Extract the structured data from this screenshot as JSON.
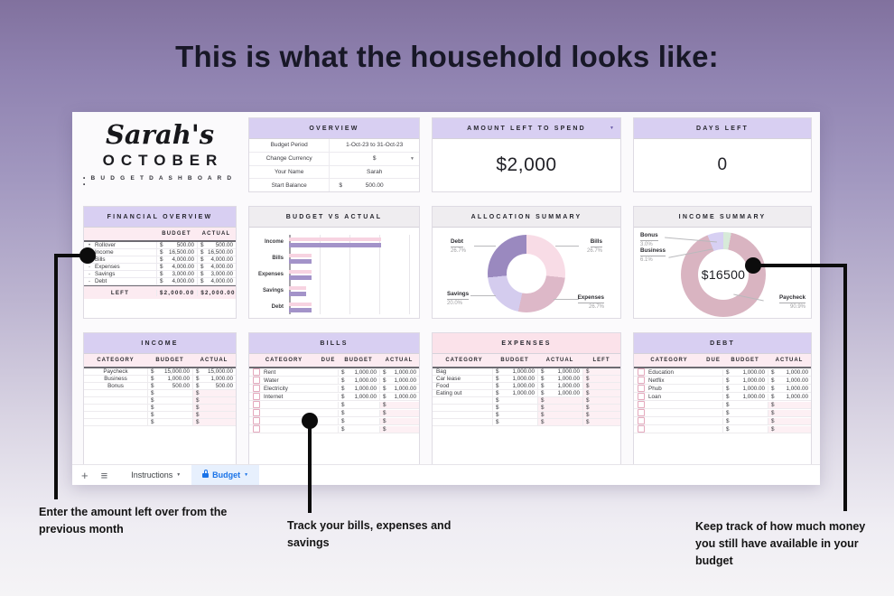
{
  "page": {
    "title": "This is what the household looks like:"
  },
  "logo": {
    "name": "Sarah's",
    "month": "OCTOBER",
    "subtitle": "• B U D G E T  D A S H B O A R D •"
  },
  "overview": {
    "title": "OVERVIEW",
    "rows": [
      {
        "label": "Budget Period",
        "cur": "",
        "value": "1-Oct-23   to   31-Oct-23",
        "arrow": ""
      },
      {
        "label": "Change Currency",
        "cur": "",
        "value": "$",
        "arrow": "▼"
      },
      {
        "label": "Your Name",
        "cur": "",
        "value": "Sarah",
        "arrow": ""
      },
      {
        "label": "Start Balance",
        "cur": "$",
        "value": "500.00",
        "arrow": ""
      }
    ]
  },
  "amount_left": {
    "title": "AMOUNT LEFT TO SPEND",
    "arrow": "▼",
    "value": "$2,000"
  },
  "days_left": {
    "title": "DAYS LEFT",
    "value": "0"
  },
  "financial_overview": {
    "title": "FINANCIAL OVERVIEW",
    "currency": "$",
    "columns": [
      "BUDGET",
      "ACTUAL"
    ],
    "rows": [
      {
        "bullet": "•",
        "label": "Rollover",
        "budget": "500.00",
        "actual": "500.00"
      },
      {
        "bullet": "",
        "label": "Income",
        "budget": "16,500.00",
        "actual": "16,500.00"
      },
      {
        "bullet": "-",
        "label": "Bills",
        "budget": "4,000.00",
        "actual": "4,000.00"
      },
      {
        "bullet": "-",
        "label": "Expenses",
        "budget": "4,000.00",
        "actual": "4,000.00"
      },
      {
        "bullet": "-",
        "label": "Savings",
        "budget": "3,000.00",
        "actual": "3,000.00"
      },
      {
        "bullet": "-",
        "label": "Debt",
        "budget": "4,000.00",
        "actual": "4,000.00"
      }
    ],
    "footer": {
      "label": "LEFT",
      "budget": "2,000.00",
      "actual": "2,000.00"
    }
  },
  "chart_data": [
    {
      "id": "budget_vs_actual",
      "type": "bar",
      "orientation": "horizontal",
      "title": "BUDGET VS ACTUAL",
      "categories": [
        "Income",
        "Bills",
        "Expenses",
        "Savings",
        "Debt"
      ],
      "series": [
        {
          "name": "Budget",
          "color": "#f7d3e1",
          "values": [
            16500,
            4000,
            4000,
            3000,
            4000
          ]
        },
        {
          "name": "Actual",
          "color": "#a393c9",
          "values": [
            16500,
            4000,
            4000,
            3000,
            4000
          ]
        }
      ],
      "xlim": [
        0,
        20000
      ],
      "gridline_interval": 5000,
      "legend": false
    },
    {
      "id": "allocation_summary",
      "type": "pie",
      "subtype": "donut",
      "title": "ALLOCATION SUMMARY",
      "slices": [
        {
          "label": "Bills",
          "pct": 26.7,
          "pct_label": "26.7%",
          "color": "#f8dce6"
        },
        {
          "label": "Expenses",
          "pct": 26.7,
          "pct_label": "26.7%",
          "color": "#ddb8c8"
        },
        {
          "label": "Savings",
          "pct": 20.0,
          "pct_label": "20.0%",
          "color": "#d4ccee"
        },
        {
          "label": "Debt",
          "pct": 26.7,
          "pct_label": "26.7%",
          "color": "#9a89bf"
        }
      ]
    },
    {
      "id": "income_summary",
      "type": "pie",
      "subtype": "donut",
      "title": "INCOME SUMMARY",
      "center_label": "$16500",
      "slices": [
        {
          "label": "Bonus",
          "pct": 3.0,
          "pct_label": "3.0%",
          "color": "#d7ead9"
        },
        {
          "label": "Paycheck",
          "pct": 90.9,
          "pct_label": "90.9%",
          "color": "#d9b4c1"
        },
        {
          "label": "Business",
          "pct": 6.1,
          "pct_label": "6.1%",
          "color": "#d7d0f3"
        }
      ]
    }
  ],
  "income": {
    "title": "INCOME",
    "currency": "$",
    "columns": [
      "CATEGORY",
      "BUDGET",
      "ACTUAL"
    ],
    "rows": [
      {
        "category": "Paycheck",
        "budget": "15,000.00",
        "actual": "15,000.00"
      },
      {
        "category": "Business",
        "budget": "1,000.00",
        "actual": "1,000.00"
      },
      {
        "category": "Bonus",
        "budget": "500.00",
        "actual": "500.00"
      },
      {
        "category": "",
        "budget": "",
        "actual": ""
      },
      {
        "category": "",
        "budget": "",
        "actual": ""
      },
      {
        "category": "",
        "budget": "",
        "actual": ""
      },
      {
        "category": "",
        "budget": "",
        "actual": ""
      },
      {
        "category": "",
        "budget": "",
        "actual": ""
      }
    ]
  },
  "bills": {
    "title": "BILLS",
    "currency": "$",
    "columns": [
      "CATEGORY",
      "DUE",
      "BUDGET",
      "ACTUAL"
    ],
    "rows": [
      {
        "category": "Rent",
        "due": "",
        "budget": "1,000.00",
        "actual": "1,000.00"
      },
      {
        "category": "Water",
        "due": "",
        "budget": "1,000.00",
        "actual": "1,000.00"
      },
      {
        "category": "Electricity",
        "due": "",
        "budget": "1,000.00",
        "actual": "1,000.00"
      },
      {
        "category": "Internet",
        "due": "",
        "budget": "1,000.00",
        "actual": "1,000.00"
      },
      {
        "category": "",
        "due": "",
        "budget": "",
        "actual": ""
      },
      {
        "category": "",
        "due": "",
        "budget": "",
        "actual": ""
      },
      {
        "category": "",
        "due": "",
        "budget": "",
        "actual": ""
      },
      {
        "category": "",
        "due": "",
        "budget": "",
        "actual": ""
      }
    ]
  },
  "expenses": {
    "title": "EXPENSES",
    "currency": "$",
    "columns": [
      "CATEGORY",
      "BUDGET",
      "ACTUAL",
      "LEFT"
    ],
    "rows": [
      {
        "category": "Bag",
        "budget": "1,000.00",
        "actual": "1,000.00",
        "left": ""
      },
      {
        "category": "Car lease",
        "budget": "1,000.00",
        "actual": "1,000.00",
        "left": ""
      },
      {
        "category": "Food",
        "budget": "1,000.00",
        "actual": "1,000.00",
        "left": ""
      },
      {
        "category": "Eating out",
        "budget": "1,000.00",
        "actual": "1,000.00",
        "left": ""
      },
      {
        "category": "",
        "budget": "",
        "actual": "",
        "left": ""
      },
      {
        "category": "",
        "budget": "",
        "actual": "",
        "left": ""
      },
      {
        "category": "",
        "budget": "",
        "actual": "",
        "left": ""
      },
      {
        "category": "",
        "budget": "",
        "actual": "",
        "left": ""
      }
    ]
  },
  "debt": {
    "title": "DEBT",
    "currency": "$",
    "columns": [
      "CATEGORY",
      "DUE",
      "BUDGET",
      "ACTUAL"
    ],
    "rows": [
      {
        "category": "Education",
        "due": "",
        "budget": "1,000.00",
        "actual": "1,000.00"
      },
      {
        "category": "Netflix",
        "due": "",
        "budget": "1,000.00",
        "actual": "1,000.00"
      },
      {
        "category": "Phub",
        "due": "",
        "budget": "1,000.00",
        "actual": "1,000.00"
      },
      {
        "category": "Loan",
        "due": "",
        "budget": "1,000.00",
        "actual": "1,000.00"
      },
      {
        "category": "",
        "due": "",
        "budget": "",
        "actual": ""
      },
      {
        "category": "",
        "due": "",
        "budget": "",
        "actual": ""
      },
      {
        "category": "",
        "due": "",
        "budget": "",
        "actual": ""
      },
      {
        "category": "",
        "due": "",
        "budget": "",
        "actual": ""
      }
    ]
  },
  "sheet_bar": {
    "add_icon": "+",
    "all_sheets_icon": "≡",
    "tabs": [
      {
        "label": "Instructions",
        "arrow": "▼",
        "active": false,
        "locked": false
      },
      {
        "label": "Budget",
        "arrow": "▼",
        "active": true,
        "locked": true
      }
    ]
  },
  "annotations": [
    {
      "text": "Enter the amount left over from the previous month"
    },
    {
      "text": "Track your bills, expenses and savings"
    },
    {
      "text": "Keep track of how much money you still have available in your budget"
    }
  ],
  "colors": {
    "header_lavender": "#d8cff2",
    "header_gray": "#efedf0",
    "header_pink": "#fbe2ea",
    "column_header_pink": "#fcebf1",
    "active_tab_text": "#1a73e8",
    "active_tab_bg": "#e7f0fd",
    "annotation_black": "#0c0c0c"
  }
}
